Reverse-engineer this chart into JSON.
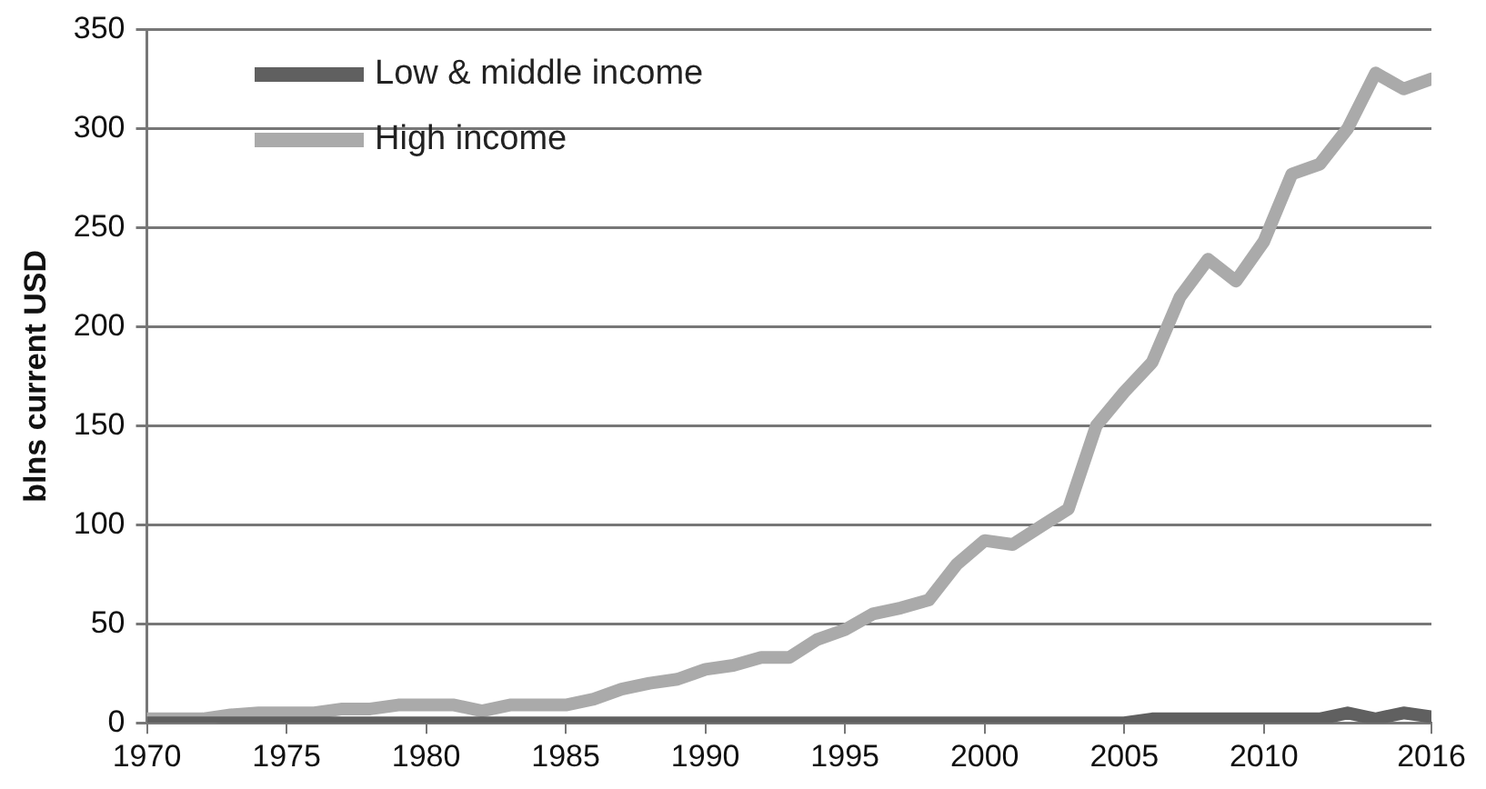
{
  "chart_data": {
    "type": "line",
    "ylabel": "blns current USD",
    "xlim": [
      1970,
      2016
    ],
    "xticks": [
      1970,
      1975,
      1980,
      1985,
      1990,
      1995,
      2000,
      2005,
      2010,
      2016
    ],
    "ylim": [
      0,
      350
    ],
    "yticks": [
      0,
      50,
      100,
      150,
      200,
      250,
      300,
      350
    ],
    "grid": "y",
    "legend": "top left",
    "marker": "none",
    "line_style": "solid",
    "x": [
      1970,
      1971,
      1972,
      1973,
      1974,
      1975,
      1976,
      1977,
      1978,
      1979,
      1980,
      1981,
      1982,
      1983,
      1984,
      1985,
      1986,
      1987,
      1988,
      1989,
      1990,
      1991,
      1992,
      1993,
      1994,
      1995,
      1996,
      1997,
      1998,
      1999,
      2000,
      2001,
      2002,
      2003,
      2004,
      2005,
      2006,
      2007,
      2008,
      2009,
      2010,
      2011,
      2012,
      2013,
      2014,
      2015,
      2016
    ],
    "series": [
      {
        "name": "Low & middle income",
        "color": "#606060",
        "values": [
          0,
          0,
          0,
          0,
          0,
          0,
          0,
          0,
          0,
          0,
          0,
          0,
          0,
          0,
          0,
          0,
          0,
          0,
          0,
          0,
          0,
          0,
          0,
          0,
          0,
          0,
          0,
          0,
          0,
          0,
          0,
          0,
          0,
          0,
          0,
          0,
          2,
          2,
          2,
          2,
          2,
          2,
          2,
          5,
          2,
          5,
          3
        ]
      },
      {
        "name": "High income",
        "color": "#aaaaaa",
        "values": [
          2,
          2,
          2,
          4,
          5,
          5,
          5,
          7,
          7,
          9,
          9,
          9,
          6,
          9,
          9,
          9,
          12,
          17,
          20,
          22,
          27,
          29,
          33,
          33,
          42,
          47,
          55,
          58,
          62,
          80,
          92,
          90,
          99,
          108,
          150,
          167,
          182,
          215,
          234,
          223,
          243,
          277,
          282,
          300,
          328,
          320,
          325
        ]
      }
    ]
  }
}
